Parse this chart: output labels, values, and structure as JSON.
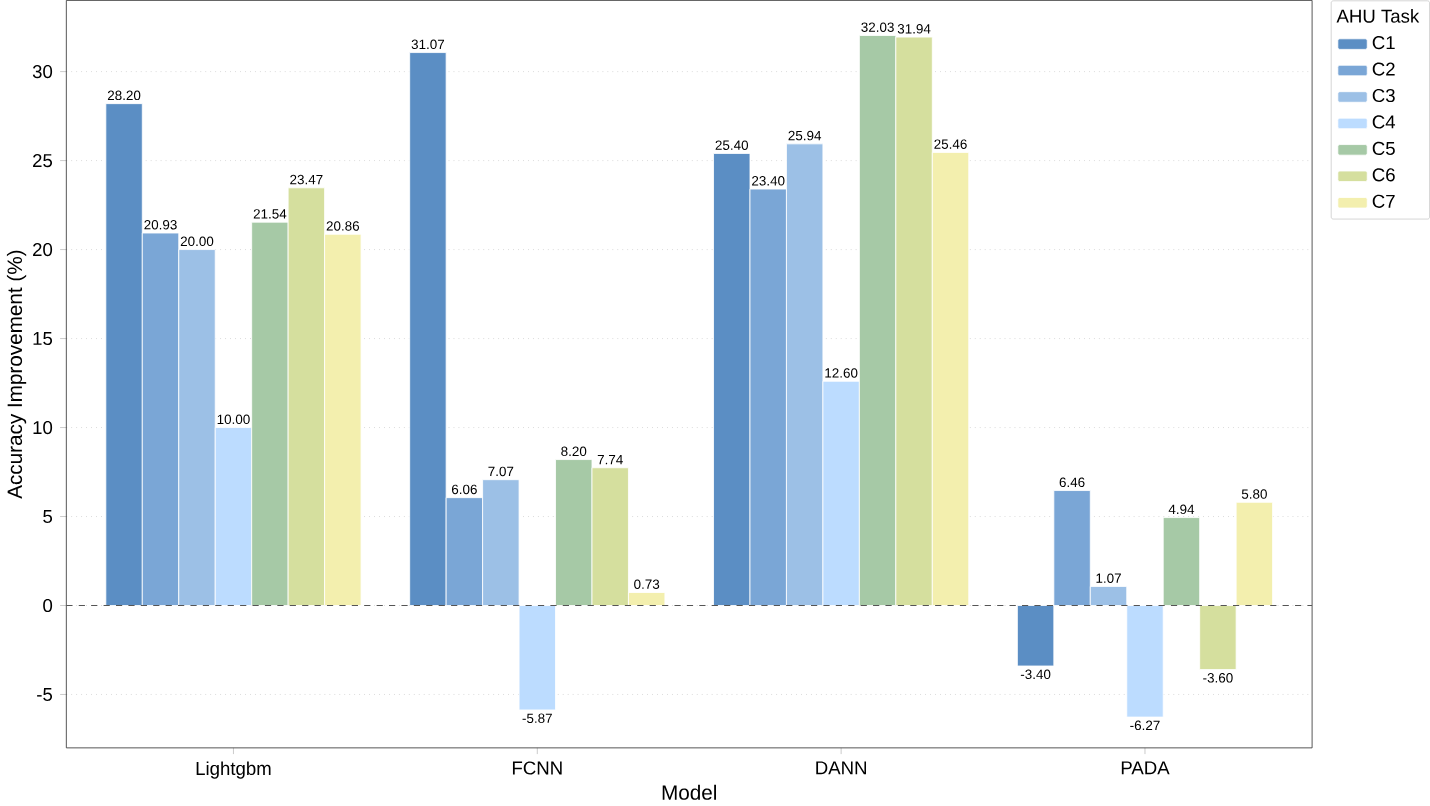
{
  "chart_data": {
    "type": "bar",
    "xlabel": "Model",
    "ylabel": "Accuracy Improvement (%)",
    "legend_title": "AHU Task",
    "categories": [
      "Lightgbm",
      "FCNN",
      "DANN",
      "PADA"
    ],
    "series": [
      {
        "name": "C1",
        "color": "#5b8ec4",
        "values": [
          28.2,
          31.07,
          25.4,
          -3.4
        ],
        "value_labels": [
          "28.20",
          "31.07",
          "25.40",
          "-3.40"
        ]
      },
      {
        "name": "C2",
        "color": "#7aa6d6",
        "values": [
          20.93,
          6.06,
          23.4,
          6.46
        ],
        "value_labels": [
          "20.93",
          "6.06",
          "23.40",
          "6.46"
        ]
      },
      {
        "name": "C3",
        "color": "#9cc0e6",
        "values": [
          20.0,
          7.07,
          25.94,
          1.07
        ],
        "value_labels": [
          "20.00",
          "7.07",
          "25.94",
          "1.07"
        ]
      },
      {
        "name": "C4",
        "color": "#bcdcff",
        "values": [
          10.0,
          -5.87,
          12.6,
          -6.27
        ],
        "value_labels": [
          "10.00",
          "-5.87",
          "12.60",
          "-6.27"
        ]
      },
      {
        "name": "C5",
        "color": "#a6c9a6",
        "values": [
          21.54,
          8.2,
          32.03,
          4.94
        ],
        "value_labels": [
          "21.54",
          "8.20",
          "32.03",
          "4.94"
        ]
      },
      {
        "name": "C6",
        "color": "#d5df9e",
        "values": [
          23.47,
          7.74,
          31.94,
          -3.6
        ],
        "value_labels": [
          "23.47",
          "7.74",
          "31.94",
          "-3.60"
        ]
      },
      {
        "name": "C7",
        "color": "#f3efae",
        "values": [
          20.86,
          0.73,
          25.46,
          5.8
        ],
        "value_labels": [
          "20.86",
          "0.73",
          "25.46",
          "5.80"
        ]
      }
    ],
    "ylim": [
      -8,
      34
    ],
    "yticks": [
      -5,
      0,
      5,
      10,
      15,
      20,
      25,
      30
    ],
    "grid": "y",
    "legend": "right",
    "ref_lines": [
      {
        "axis": "y",
        "value": 0,
        "color": "#555555",
        "line_style": "dashed"
      }
    ]
  }
}
